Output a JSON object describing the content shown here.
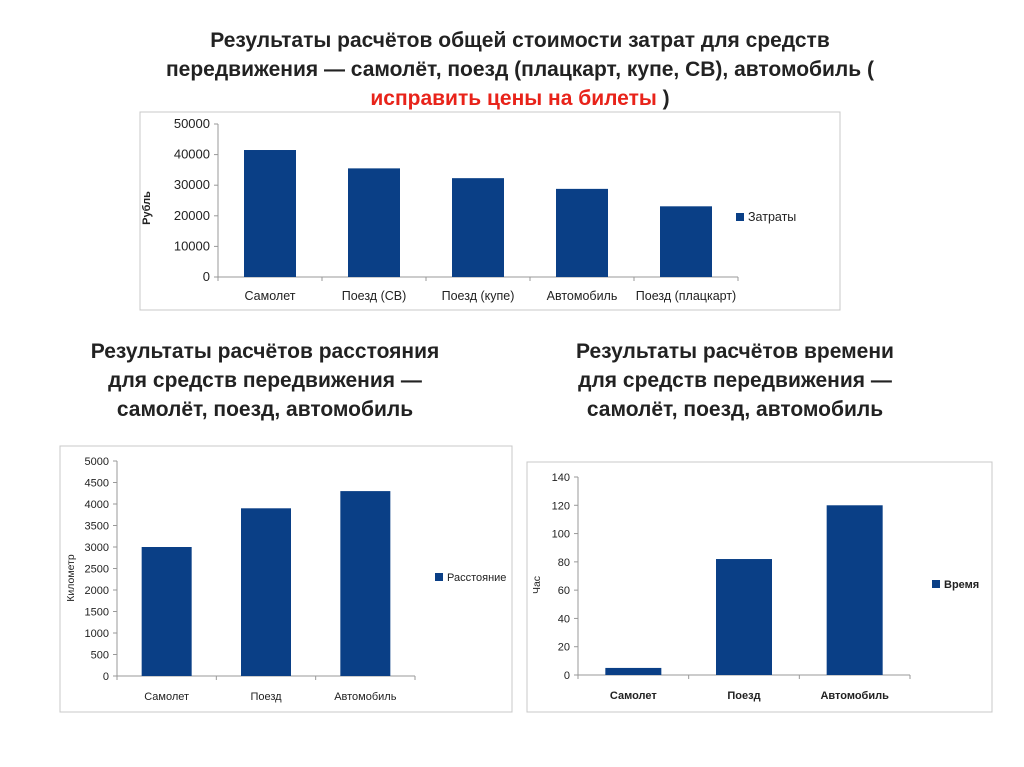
{
  "titles": {
    "main_line1": "Результаты расчётов общей стоимости затрат для средств",
    "main_line2": "передвижения — самолёт, поезд (плацкарт, купе, СВ), автомобиль  (",
    "main_red": "исправить цены на билеты",
    "main_close": ")",
    "distance_line1": "Результаты расчётов расстояния",
    "distance_line2": "для средств передвижения —",
    "distance_line3": "самолёт, поезд, автомобиль",
    "time_line1": "Результаты расчётов времени",
    "time_line2": "для средств передвижения —",
    "time_line3": "самолёт, поезд, автомобиль"
  },
  "chart_data": [
    {
      "type": "bar",
      "categories": [
        "Самолет",
        "Поезд (СВ)",
        "Поезд (купе)",
        "Автомобиль",
        "Поезд (плацкарт)"
      ],
      "series": [
        {
          "name": "Затраты",
          "values": [
            41500,
            35500,
            32300,
            28800,
            23100
          ]
        }
      ],
      "ylabel": "Рубль",
      "ylim": [
        0,
        50000
      ],
      "yticks": [
        0,
        10000,
        20000,
        30000,
        40000,
        50000
      ],
      "grid": false,
      "legend": "right",
      "color": "#0a3f86"
    },
    {
      "type": "bar",
      "categories": [
        "Самолет",
        "Поезд",
        "Автомобиль"
      ],
      "series": [
        {
          "name": "Расстояние",
          "values": [
            3000,
            3900,
            4300
          ]
        }
      ],
      "ylabel": "Километр",
      "ylim": [
        0,
        5000
      ],
      "yticks": [
        0,
        500,
        1000,
        1500,
        2000,
        2500,
        3000,
        3500,
        4000,
        4500,
        5000
      ],
      "grid": false,
      "legend": "right",
      "color": "#0a3f86"
    },
    {
      "type": "bar",
      "categories": [
        "Самолет",
        "Поезд",
        "Автомобиль"
      ],
      "series": [
        {
          "name": "Время",
          "values": [
            5,
            82,
            120
          ]
        }
      ],
      "ylabel": "Час",
      "ylim": [
        0,
        140
      ],
      "yticks": [
        0,
        20,
        40,
        60,
        80,
        100,
        120,
        140
      ],
      "grid": false,
      "legend": "right",
      "color": "#0a3f86"
    }
  ]
}
